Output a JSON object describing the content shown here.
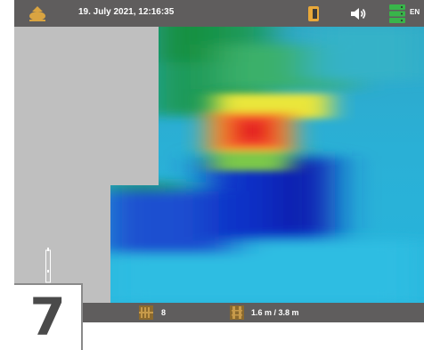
{
  "status_bar": {
    "datetime": "19. July 2021, 12:16:35",
    "language": "EN",
    "icons": [
      "device-logo-icon",
      "battery-icon",
      "volume-icon",
      "storage-icon"
    ],
    "colors": {
      "bar": "#5f5d5d",
      "logo": "#d9a441",
      "battery": "#e8a83a",
      "storage": "#38b54a"
    }
  },
  "footer_bar": {
    "scan_lines": "8",
    "dimensions": "1.6 m / 3.8 m",
    "icons": [
      "scan-lines-icon",
      "ruler-icon"
    ]
  },
  "step_badge": {
    "number": "7"
  }
}
